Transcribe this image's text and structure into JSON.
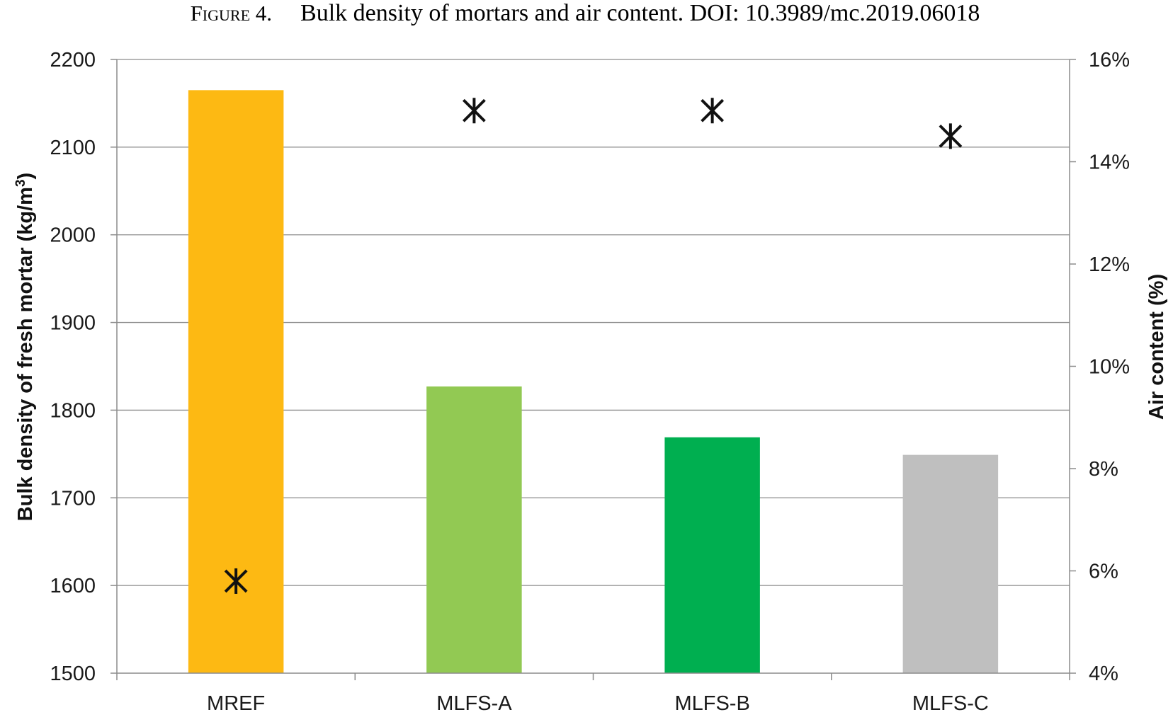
{
  "caption": {
    "figure_label": "Figure 4.",
    "text": "Bulk density of mortars and air content. DOI: 10.3989/mc.2019.06018"
  },
  "chart_data": {
    "type": "bar",
    "categories": [
      "MREF",
      "MLFS-A",
      "MLFS-B",
      "MLFS-C"
    ],
    "series": [
      {
        "axis": "left",
        "values": [
          2165,
          1827,
          1769,
          1749
        ],
        "colors": [
          "#FDB913",
          "#92C953",
          "#00AF50",
          "#BFBFBF"
        ]
      },
      {
        "axis": "right",
        "type": "scatter",
        "marker": "asterisk",
        "values": [
          5.8,
          15.0,
          15.0,
          14.5
        ]
      }
    ],
    "ylabel": "Bulk density of fresh mortar (kg/m3)",
    "ylabel_text": "Bulk density of fresh mortar (kg/m",
    "ylabel_sup": "3",
    "ylabel_close": ")",
    "y2label": "Air content (%)",
    "ylim": [
      1500,
      2200
    ],
    "y2lim": [
      4,
      16
    ],
    "yticks": [
      "1500",
      "1600",
      "1700",
      "1800",
      "1900",
      "2000",
      "2100",
      "2200"
    ],
    "y2ticks": [
      "4%",
      "6%",
      "8%",
      "10%",
      "12%",
      "14%",
      "16%"
    ],
    "grid": true,
    "legend": "none"
  }
}
